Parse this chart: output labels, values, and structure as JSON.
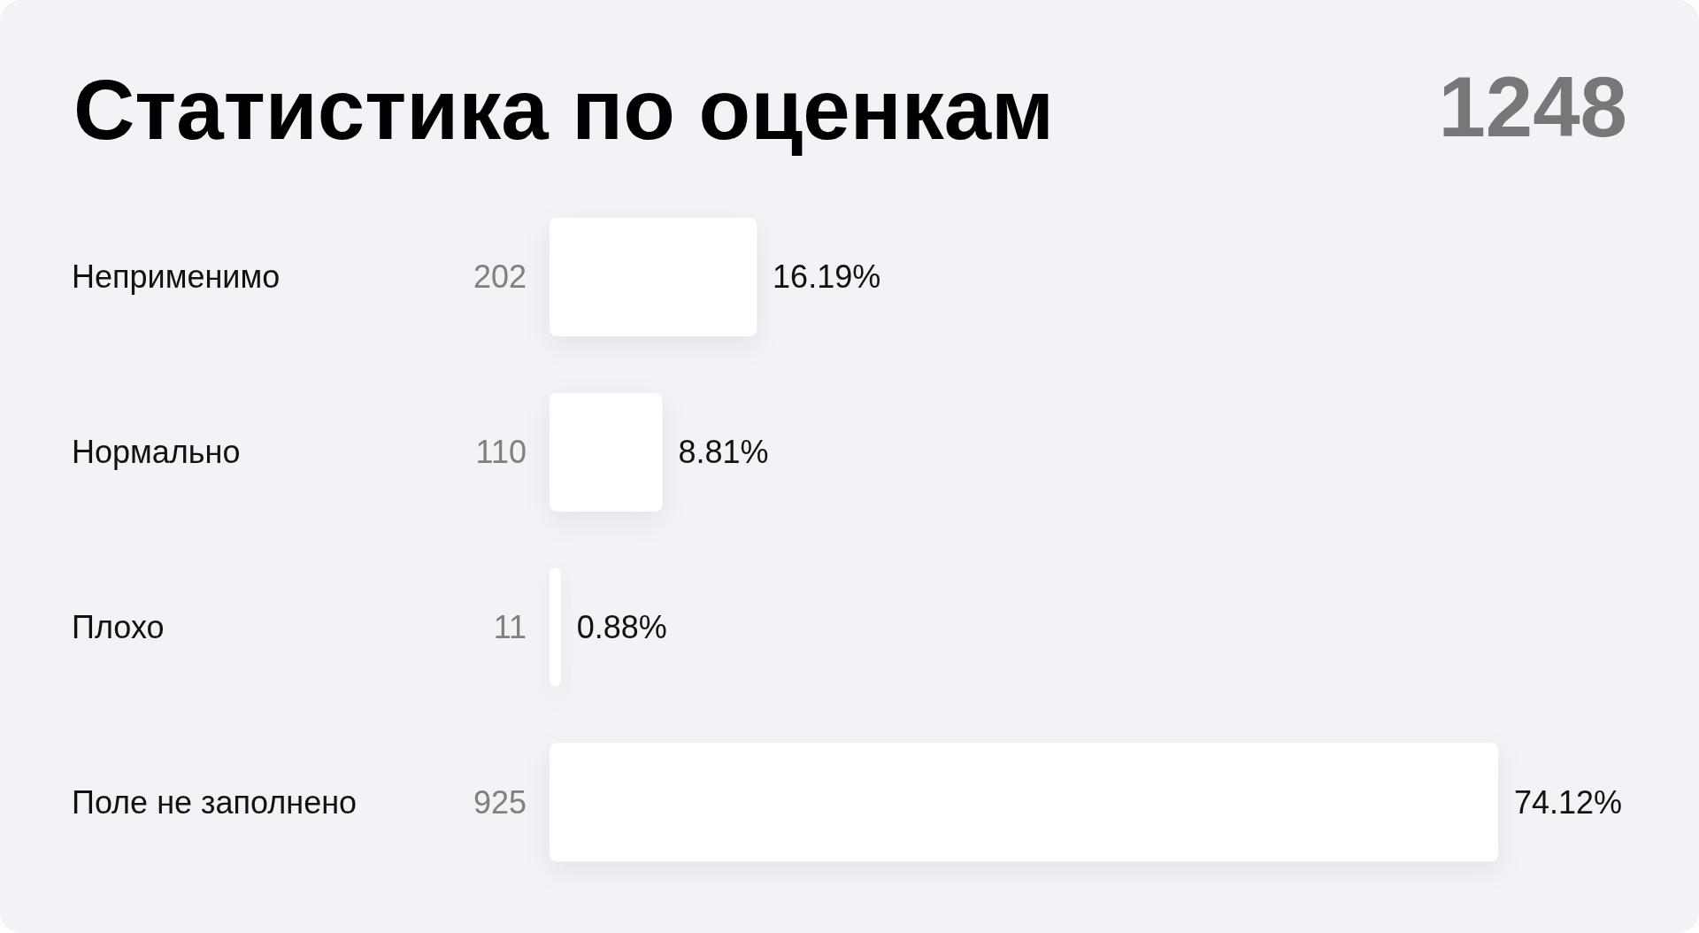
{
  "chart_data": {
    "type": "bar",
    "orientation": "horizontal",
    "title": "Статистика по оценкам",
    "categories": [
      "Неприменимо",
      "Нормально",
      "Плохо",
      "Поле не заполнено"
    ],
    "values": [
      202,
      110,
      11,
      925
    ],
    "value_labels": [
      "202",
      "110",
      "11",
      "925"
    ],
    "color": "#ffffff",
    "xlim": [
      0,
      925
    ],
    "tick_labels": "y",
    "annotations": [
      "1248",
      {
        "text": "16.19%",
        "x": 202,
        "y": "Неприменимо"
      },
      {
        "text": "8.81%",
        "x": 110,
        "y": "Нормально"
      },
      {
        "text": "0.88%",
        "x": 11,
        "y": "Плохо"
      },
      {
        "text": "74.12%",
        "x": 925,
        "y": "Поле не заполнено"
      }
    ]
  }
}
